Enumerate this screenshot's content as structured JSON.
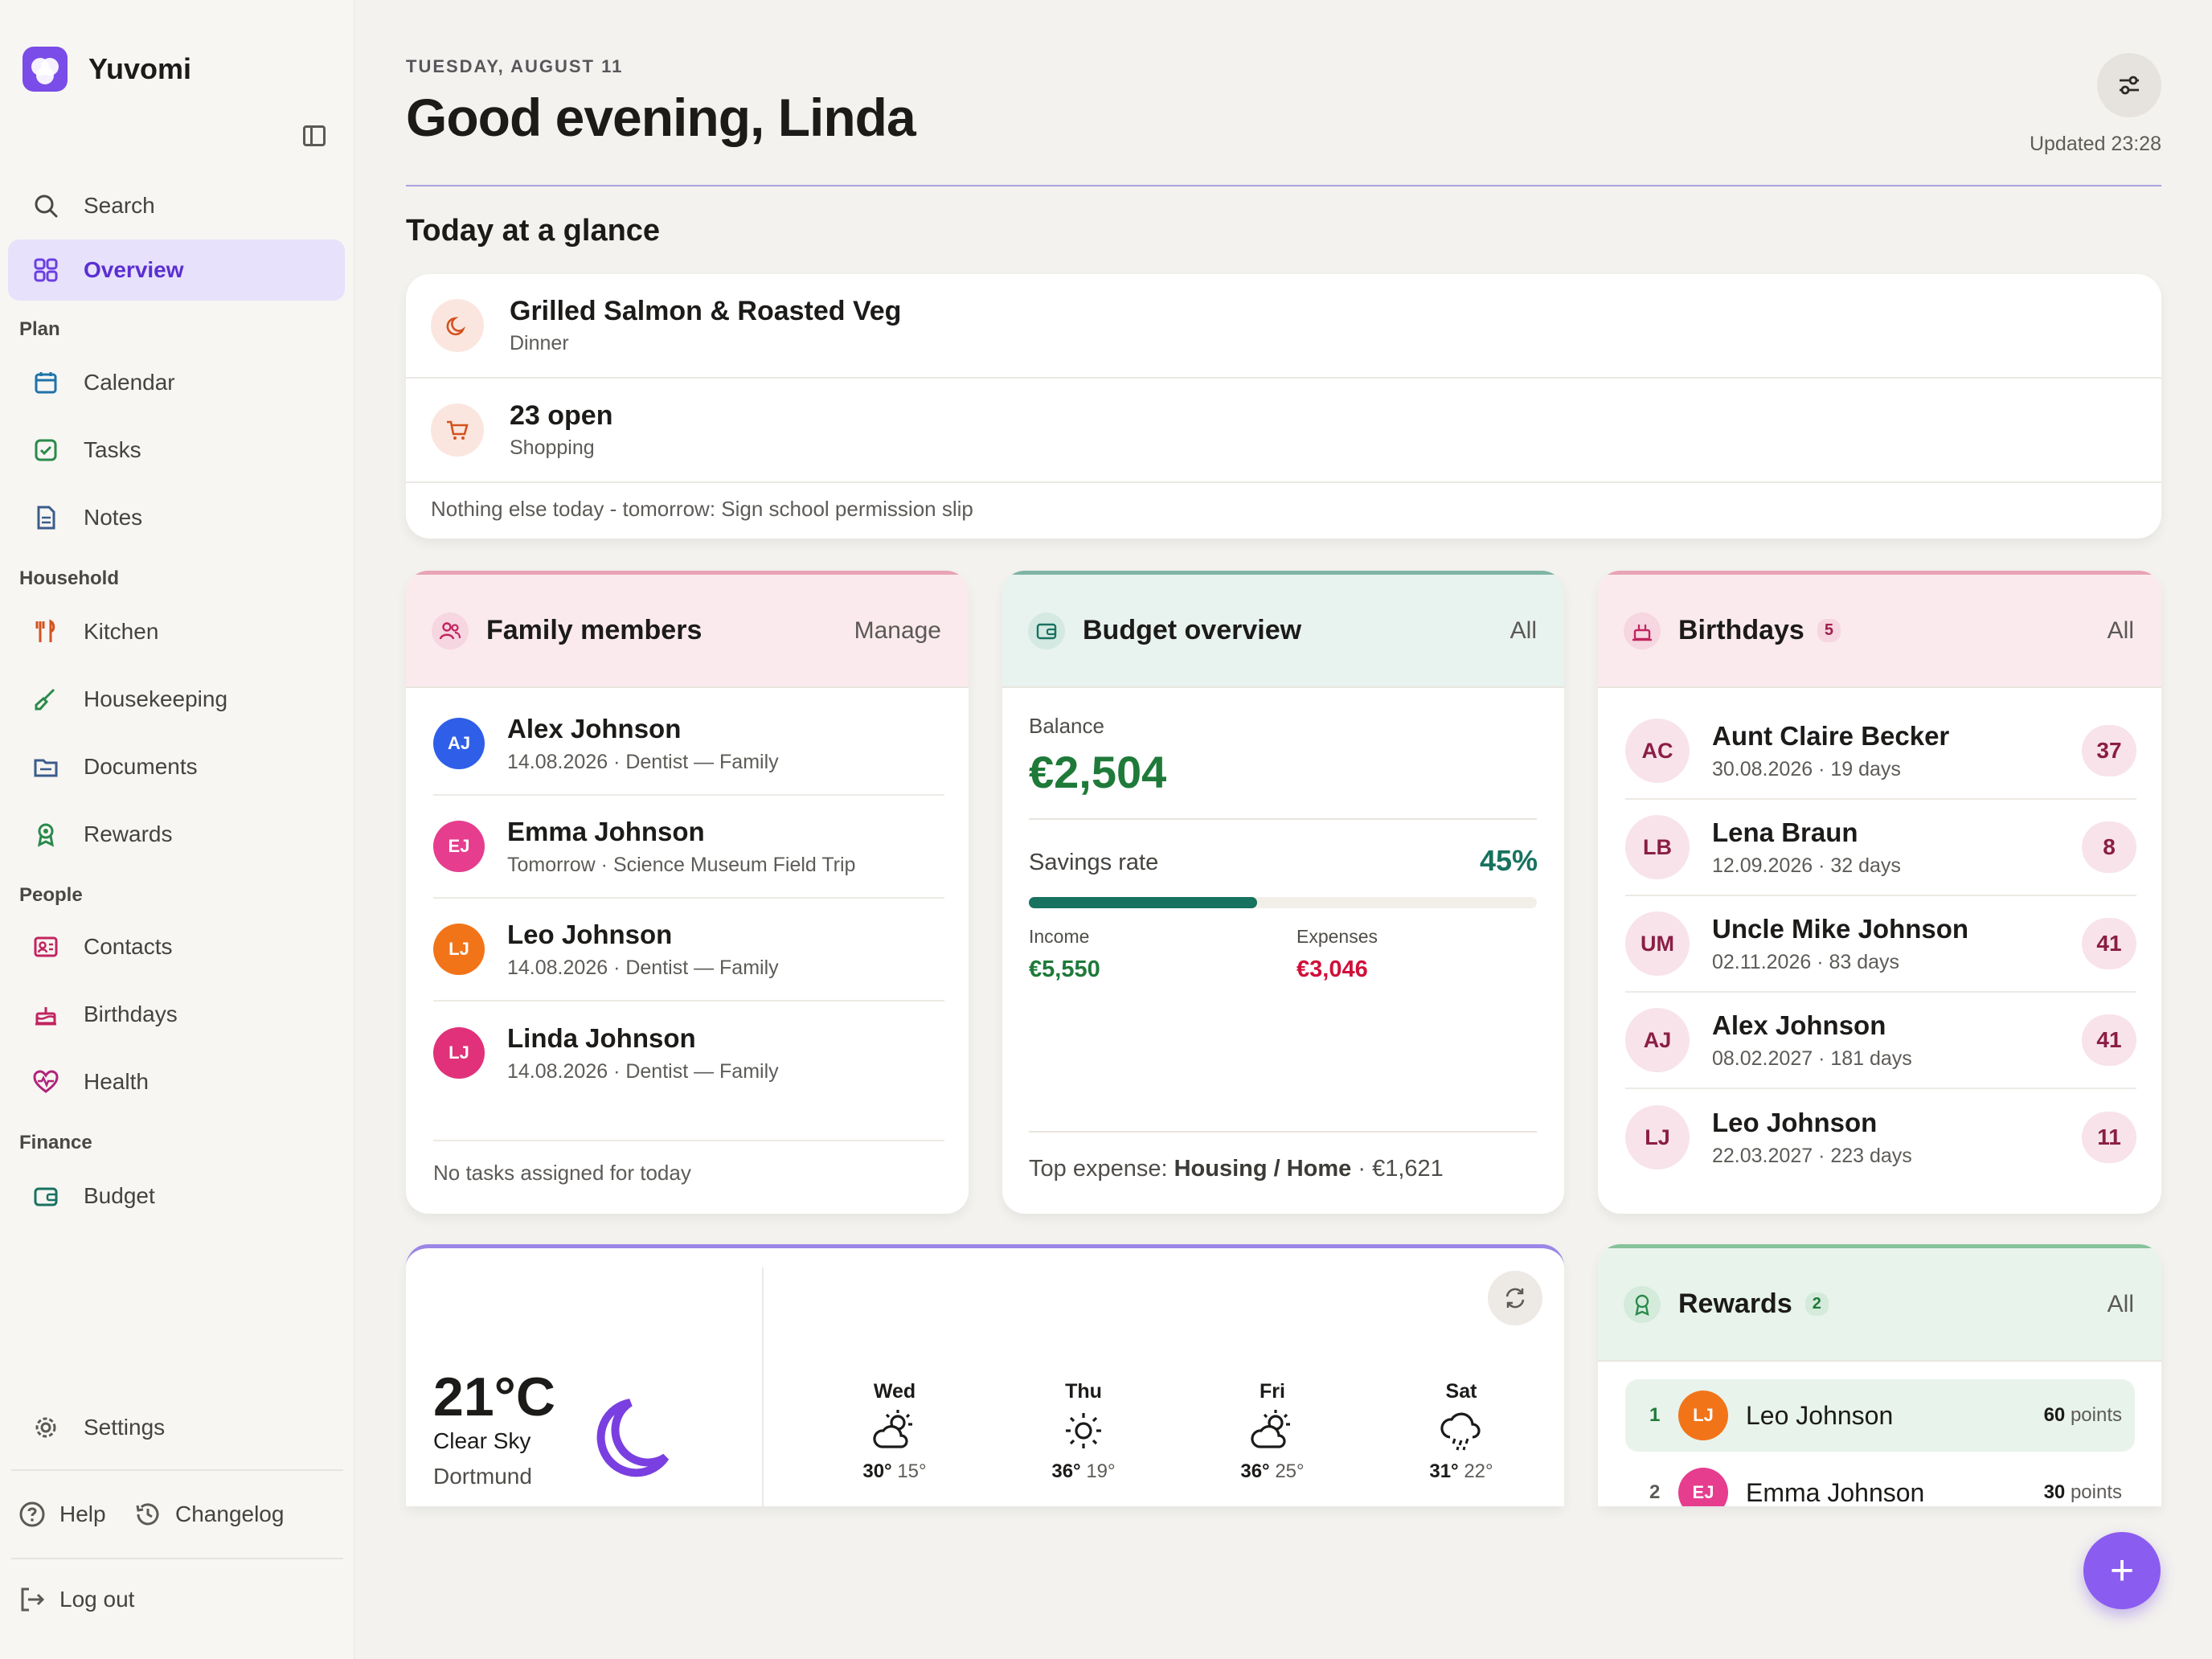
{
  "app": {
    "name": "Yuvomi"
  },
  "sidebar": {
    "search": "Search",
    "overview": "Overview",
    "sections": {
      "plan": "Plan",
      "household": "Household",
      "people": "People",
      "finance": "Finance"
    },
    "items": {
      "calendar": "Calendar",
      "tasks": "Tasks",
      "notes": "Notes",
      "kitchen": "Kitchen",
      "housekeeping": "Housekeeping",
      "documents": "Documents",
      "rewards": "Rewards",
      "contacts": "Contacts",
      "birthdays": "Birthdays",
      "health": "Health",
      "budget": "Budget"
    },
    "settings": "Settings",
    "help": "Help",
    "changelog": "Changelog",
    "logout": "Log out"
  },
  "header": {
    "date": "TUESDAY, AUGUST 11",
    "greeting": "Good evening, Linda",
    "updated": "Updated 23:28"
  },
  "glance": {
    "title": "Today at a glance",
    "meal": {
      "title": "Grilled Salmon & Roasted Veg",
      "subtitle": "Dinner"
    },
    "shopping": {
      "title": "23 open",
      "subtitle": "Shopping"
    },
    "note": "Nothing else today - tomorrow: Sign school permission slip"
  },
  "family": {
    "title": "Family members",
    "action": "Manage",
    "members": [
      {
        "initials": "AJ",
        "name": "Alex Johnson",
        "detail": "14.08.2026 · Dentist — Family",
        "color": "#2f5fe8"
      },
      {
        "initials": "EJ",
        "name": "Emma Johnson",
        "detail": "Tomorrow · Science Museum Field Trip",
        "color": "#e63d8f"
      },
      {
        "initials": "LJ",
        "name": "Leo Johnson",
        "detail": "14.08.2026 · Dentist — Family",
        "color": "#f27419"
      },
      {
        "initials": "LJ",
        "name": "Linda Johnson",
        "detail": "14.08.2026 · Dentist — Family",
        "color": "#e0317a"
      }
    ],
    "footer": "No tasks assigned for today"
  },
  "budget": {
    "title": "Budget overview",
    "action": "All",
    "balance_label": "Balance",
    "balance": "€2,504",
    "savings_label": "Savings rate",
    "savings_rate": "45%",
    "savings_fraction": 0.45,
    "income_label": "Income",
    "income": "€5,550",
    "expenses_label": "Expenses",
    "expenses": "€3,046",
    "top_label": "Top expense:",
    "top_category": "Housing / Home",
    "top_amount": "· €1,621"
  },
  "birthdays": {
    "title": "Birthdays",
    "count": "5",
    "action": "All",
    "items": [
      {
        "initials": "AC",
        "name": "Aunt Claire Becker",
        "detail": "30.08.2026 · 19 days",
        "age": "37"
      },
      {
        "initials": "LB",
        "name": "Lena Braun",
        "detail": "12.09.2026 · 32 days",
        "age": "8"
      },
      {
        "initials": "UM",
        "name": "Uncle Mike Johnson",
        "detail": "02.11.2026 · 83 days",
        "age": "41"
      },
      {
        "initials": "AJ",
        "name": "Alex Johnson",
        "detail": "08.02.2027 · 181 days",
        "age": "41"
      },
      {
        "initials": "LJ",
        "name": "Leo Johnson",
        "detail": "22.03.2027 · 223 days",
        "age": "11"
      }
    ]
  },
  "weather": {
    "temp": "21°C",
    "condition": "Clear Sky",
    "city": "Dortmund",
    "forecast": [
      {
        "day": "Wed",
        "hi": "30°",
        "lo": "15°",
        "icon": "partly-cloudy-icon"
      },
      {
        "day": "Thu",
        "hi": "36°",
        "lo": "19°",
        "icon": "sun-icon"
      },
      {
        "day": "Fri",
        "hi": "36°",
        "lo": "25°",
        "icon": "partly-cloudy-icon"
      },
      {
        "day": "Sat",
        "hi": "31°",
        "lo": "22°",
        "icon": "rain-icon"
      }
    ]
  },
  "rewards": {
    "title": "Rewards",
    "count": "2",
    "action": "All",
    "items": [
      {
        "rank": "1",
        "initials": "LJ",
        "name": "Leo Johnson",
        "points": "60",
        "unit": "points",
        "color": "#f27419"
      },
      {
        "rank": "2",
        "initials": "EJ",
        "name": "Emma Johnson",
        "points": "30",
        "unit": "points",
        "color": "#e63d8f"
      }
    ]
  },
  "colors": {
    "accent": "#7a4ce8",
    "green": "#1f7a3a",
    "red": "#d0103a",
    "teal": "#17725f"
  }
}
